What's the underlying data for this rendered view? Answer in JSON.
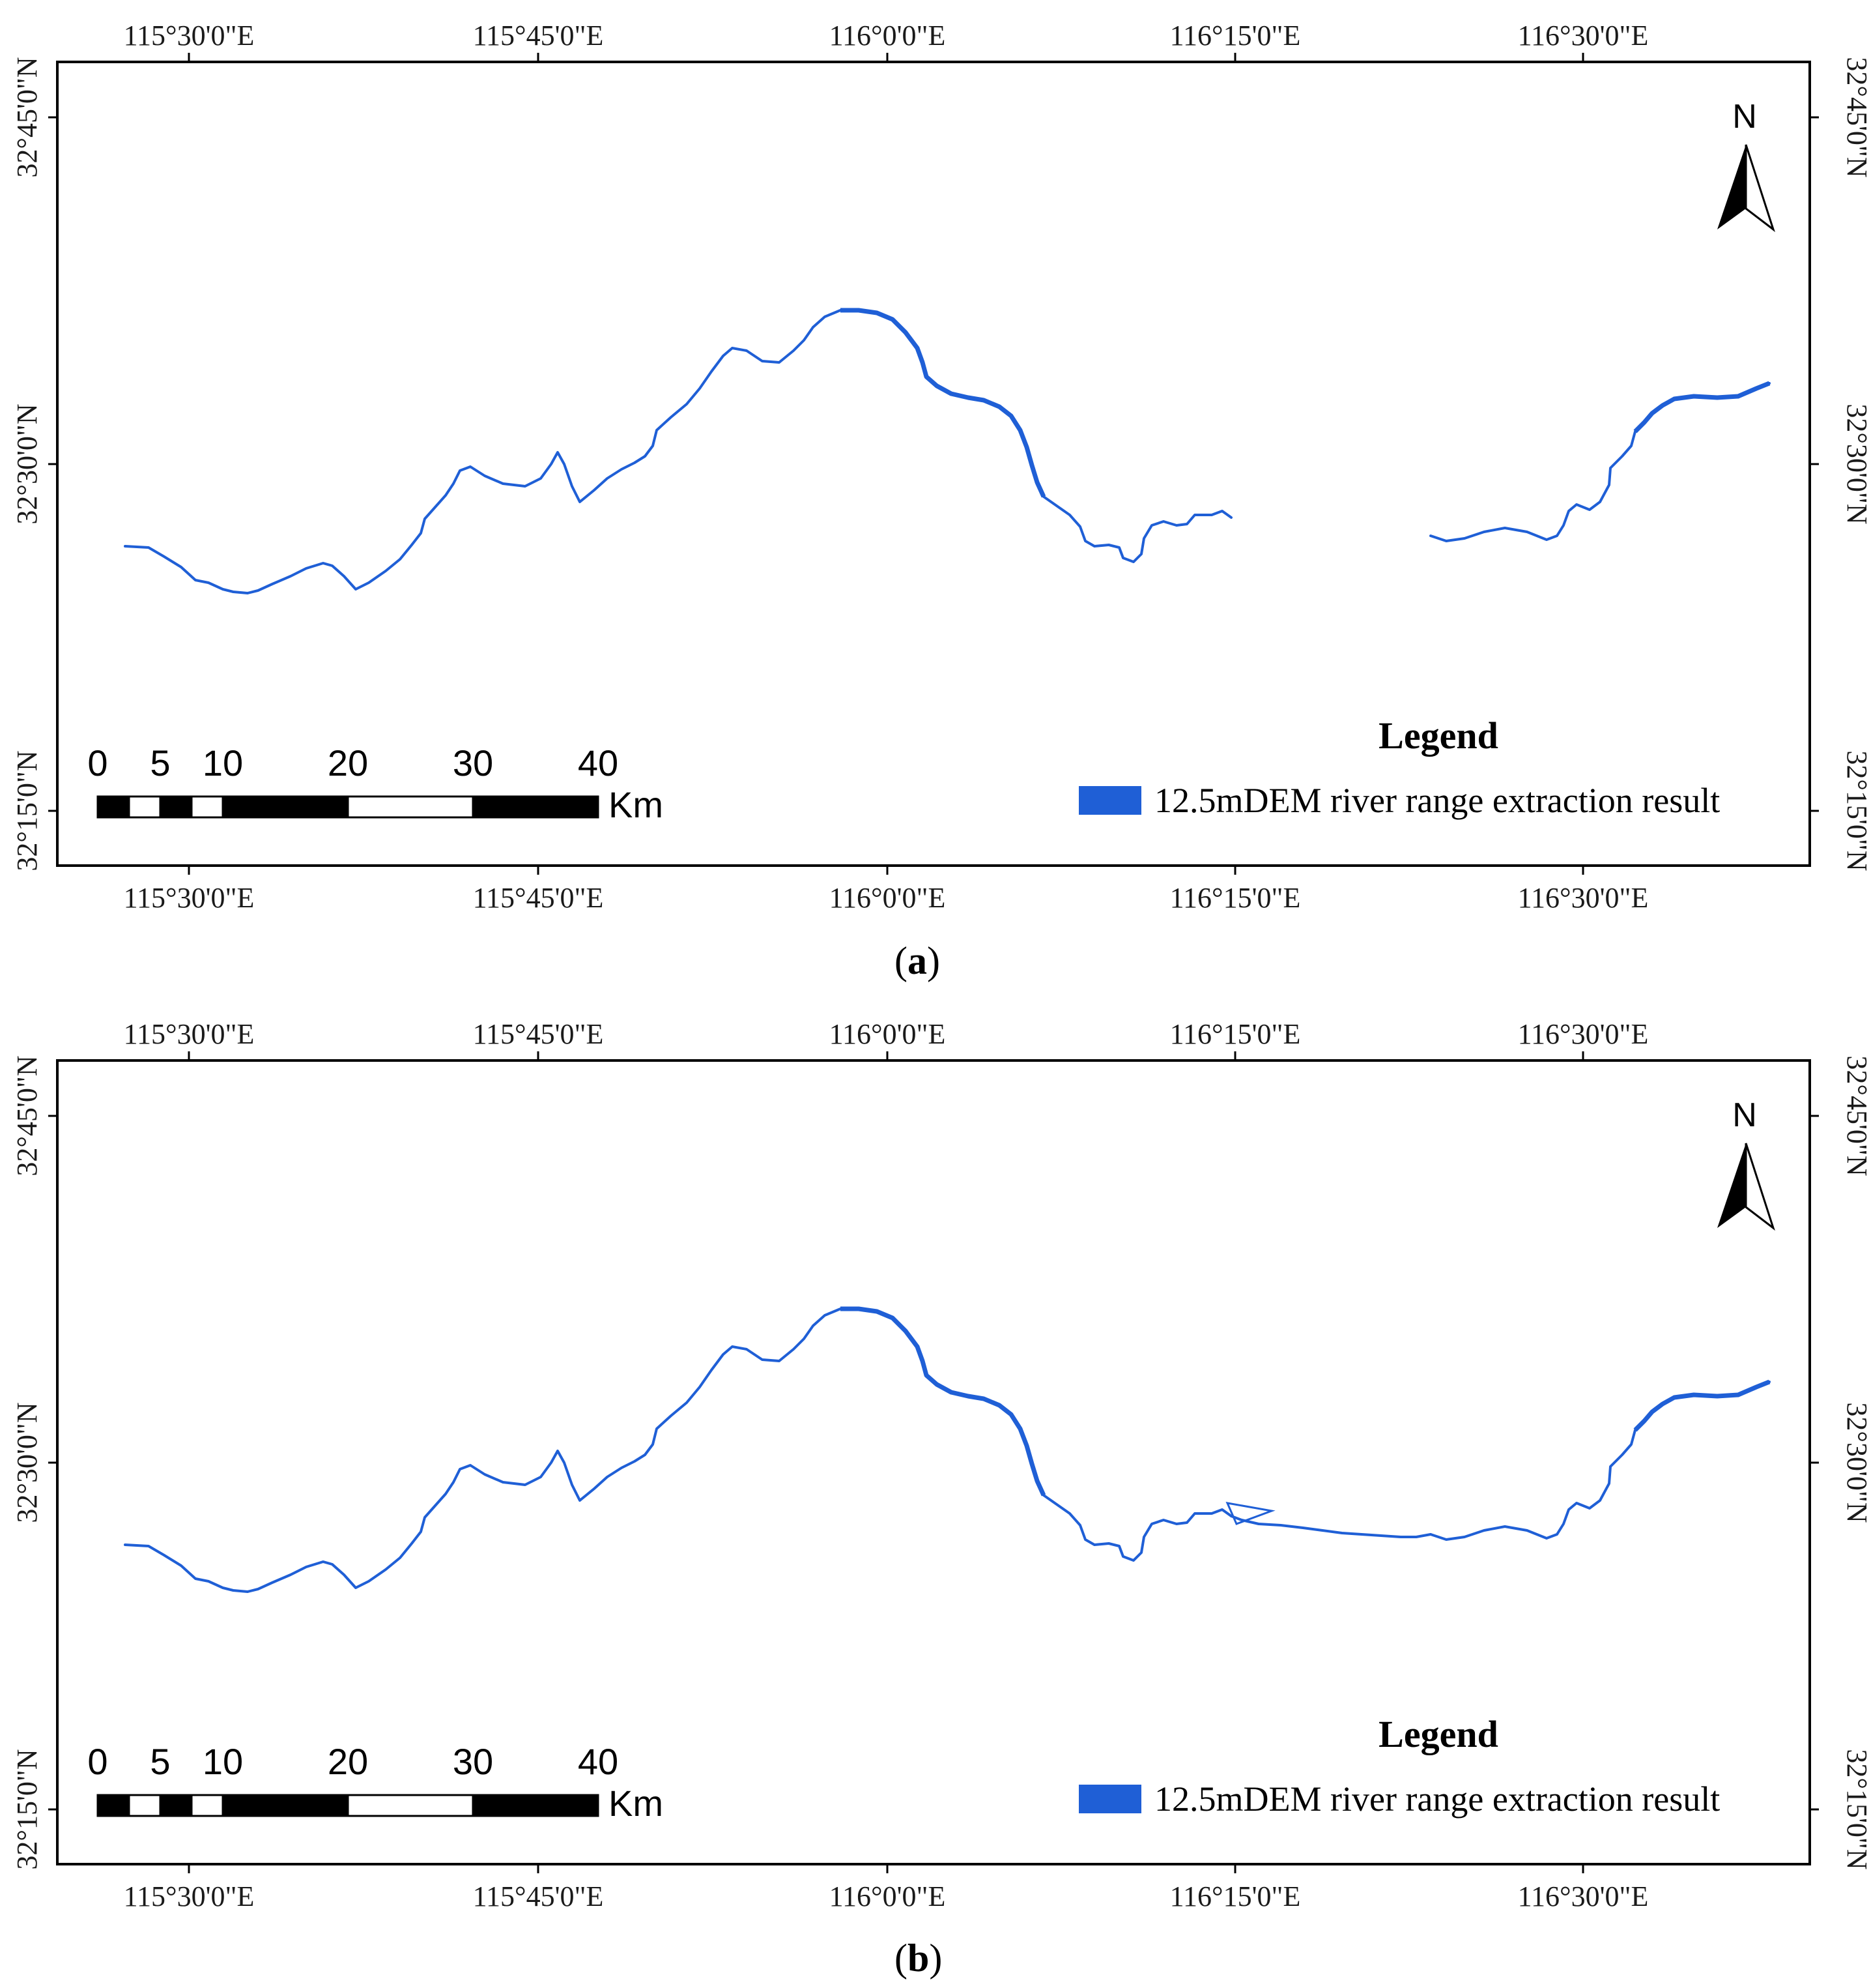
{
  "colors": {
    "river": "#1f5fd6",
    "legend_swatch": "#1f5fd6",
    "frame": "#000000"
  },
  "panels": [
    {
      "id": "a",
      "caption_open": "(",
      "caption_letter": "a",
      "caption_close": ")",
      "top_lon_labels": [
        "115°30'0\"E",
        "115°45'0\"E",
        "116°0'0\"E",
        "116°15'0\"E",
        "116°30'0\"E"
      ],
      "bottom_lon_labels": [
        "115°30'0\"E",
        "115°45'0\"E",
        "116°0'0\"E",
        "116°15'0\"E",
        "116°30'0\"E"
      ],
      "left_lat_labels": [
        "32°45'0\"N",
        "32°30'0\"N",
        "32°15'0\"N"
      ],
      "right_lat_labels": [
        "32°45'0\"N",
        "32°30'0\"N",
        "32°15'0\"N"
      ],
      "north_label": "N",
      "scale_labels": [
        "0",
        "5",
        "10",
        "20",
        "30",
        "40"
      ],
      "scale_unit": "Km",
      "legend_title": "Legend",
      "legend_label": "12.5mDEM river range extraction result",
      "gap_in_river": true
    },
    {
      "id": "b",
      "caption_open": "(",
      "caption_letter": "b",
      "caption_close": ")",
      "top_lon_labels": [
        "115°30'0\"E",
        "115°45'0\"E",
        "116°0'0\"E",
        "116°15'0\"E",
        "116°30'0\"E"
      ],
      "bottom_lon_labels": [
        "115°30'0\"E",
        "115°45'0\"E",
        "116°0'0\"E",
        "116°15'0\"E",
        "116°30'0\"E"
      ],
      "left_lat_labels": [
        "32°45'0\"N",
        "32°30'0\"N",
        "32°15'0\"N"
      ],
      "right_lat_labels": [
        "32°45'0\"N",
        "32°30'0\"N",
        "32°15'0\"N"
      ],
      "north_label": "N",
      "scale_labels": [
        "0",
        "5",
        "10",
        "20",
        "30",
        "40"
      ],
      "scale_unit": "Km",
      "legend_title": "Legend",
      "legend_label": "12.5mDEM river range extraction result",
      "gap_in_river": false
    }
  ]
}
